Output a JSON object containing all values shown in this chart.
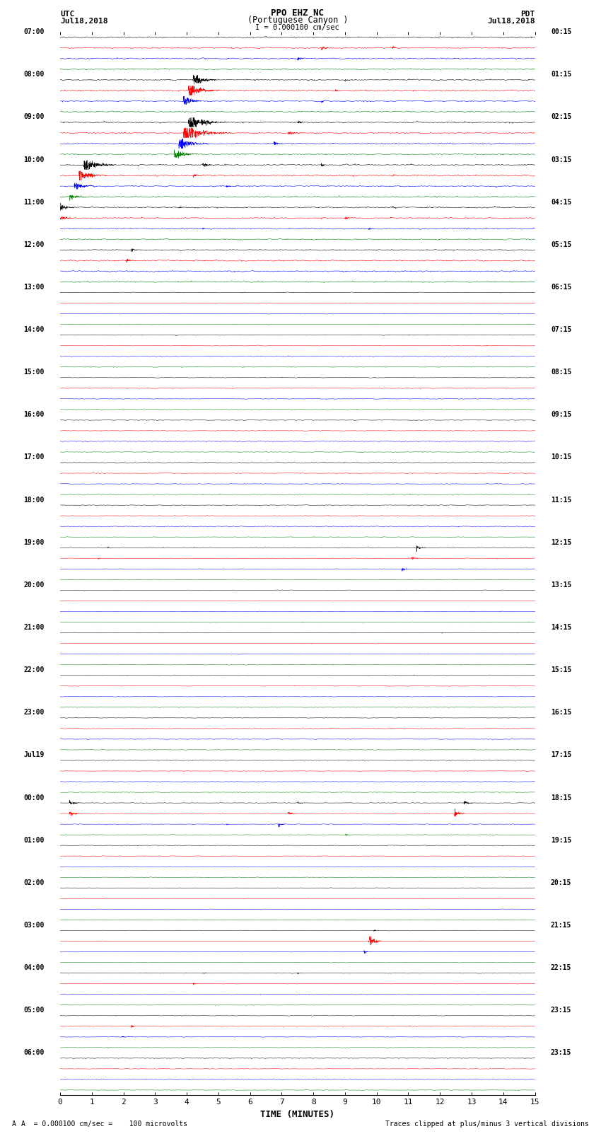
{
  "title_line1": "PPO EHZ NC",
  "title_line2": "(Portuguese Canyon )",
  "title_line3": "I = 0.000100 cm/sec",
  "left_label_line1": "UTC",
  "left_label_line2": "Jul18,2018",
  "right_label_line1": "PDT",
  "right_label_line2": "Jul18,2018",
  "xlabel": "TIME (MINUTES)",
  "footer_left": "A  = 0.000100 cm/sec =    100 microvolts",
  "footer_right": "Traces clipped at plus/minus 3 vertical divisions",
  "colors": [
    "black",
    "red",
    "blue",
    "green"
  ],
  "n_rows": 100,
  "n_minutes": 15,
  "samples_per_minute": 200,
  "background_color": "white",
  "utc_hour_labels": [
    "07:00",
    "08:00",
    "09:00",
    "10:00",
    "11:00",
    "12:00",
    "13:00",
    "14:00",
    "15:00",
    "16:00",
    "17:00",
    "18:00",
    "19:00",
    "20:00",
    "21:00",
    "22:00",
    "23:00",
    "Jul19",
    "00:00",
    "01:00",
    "02:00",
    "03:00",
    "04:00",
    "05:00",
    "06:00"
  ],
  "pdt_hour_labels": [
    "00:15",
    "01:15",
    "02:15",
    "03:15",
    "04:15",
    "05:15",
    "06:15",
    "07:15",
    "08:15",
    "09:15",
    "10:15",
    "11:15",
    "12:15",
    "13:15",
    "14:15",
    "15:15",
    "16:15",
    "17:15",
    "18:15",
    "19:15",
    "20:15",
    "21:15",
    "22:15",
    "23:15",
    "23:15"
  ]
}
